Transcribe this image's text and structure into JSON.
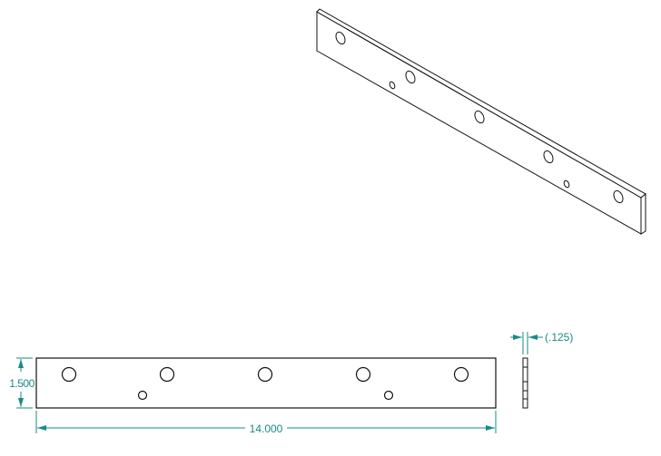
{
  "dimensions": {
    "length": "14.000",
    "height": "1.500",
    "thickness": "(.125)"
  },
  "colors": {
    "dimension": "#1a8a8a",
    "geometry": "#111111"
  }
}
